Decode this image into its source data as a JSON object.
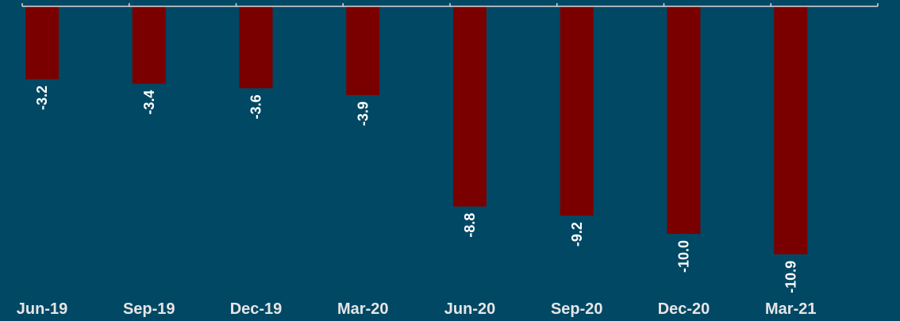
{
  "chart_data": {
    "type": "bar",
    "title": "",
    "xlabel": "",
    "ylabel": "",
    "categories": [
      "Jun-19",
      "Sep-19",
      "Dec-19",
      "Mar-20",
      "Jun-20",
      "Sep-20",
      "Dec-20",
      "Mar-21"
    ],
    "values": [
      -3.2,
      -3.4,
      -3.6,
      -3.9,
      -8.8,
      -9.2,
      -10.0,
      -10.9
    ],
    "data_labels": [
      "-3.2",
      "-3.4",
      "-3.6",
      "-3.9",
      "-8.8",
      "-9.2",
      "-10.0",
      "-10.9"
    ],
    "ylim": [
      -11,
      0
    ],
    "grid": false,
    "legend": "none",
    "colors": {
      "background": "#004864",
      "bar": "#7a0000",
      "axis": "#d9d9d9",
      "tick_text": "#e6e6e6",
      "label_text": "#ffffff"
    }
  }
}
